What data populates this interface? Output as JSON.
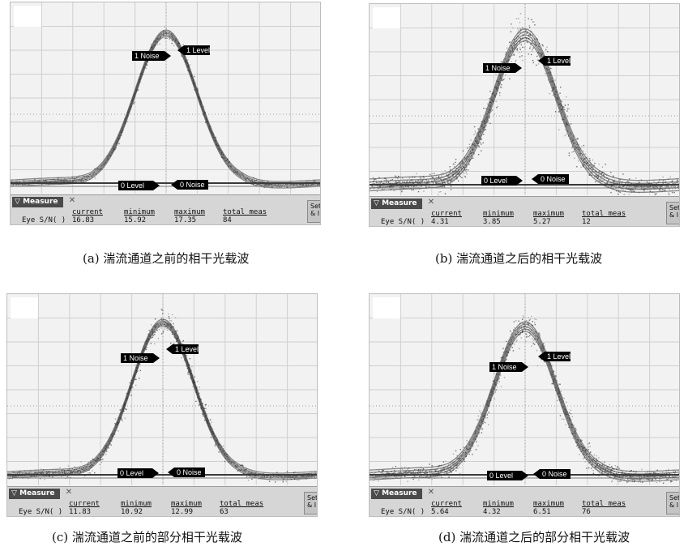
{
  "panels": [
    {
      "caption": "(a)  湍流通道之前的相干光载波",
      "markers": {
        "level1": "1 Level",
        "noise1": "1 Noise",
        "level0": "0 Level",
        "noise0": "0 Noise"
      },
      "measure": {
        "title": "Measure",
        "name": "Eye S/N( )",
        "headers": [
          "current",
          "minimum",
          "maximum",
          "total meas"
        ],
        "values": [
          "16.83",
          "15.92",
          "17.35",
          "84"
        ]
      },
      "setup_label": "Set & I"
    },
    {
      "caption": "(b)  湍流通道之后的相干光载波",
      "markers": {
        "level1": "1 Level",
        "noise1": "1 Noise",
        "level0": "0 Level",
        "noise0": "0 Noise"
      },
      "measure": {
        "title": "Measure",
        "name": "Eye S/N( )",
        "headers": [
          "current",
          "minimum",
          "maximum",
          "total meas"
        ],
        "values": [
          "4.31",
          "3.85",
          "5.27",
          "12"
        ]
      },
      "setup_label": "Set & I"
    },
    {
      "caption": "(c)  湍流通道之前的部分相干光载波",
      "markers": {
        "level1": "1 Level",
        "noise1": "1 Noise",
        "level0": "0 Level",
        "noise0": "0 Noise"
      },
      "measure": {
        "title": "Measure",
        "name": "Eye S/N( )",
        "headers": [
          "current",
          "minimum",
          "maximum",
          "total meas"
        ],
        "values": [
          "11.83",
          "10.92",
          "12.99",
          "63"
        ]
      },
      "setup_label": "Set & I"
    },
    {
      "caption": "(d)  湍流通道之后的部分相干光载波",
      "markers": {
        "level1": "1 Level",
        "noise1": "1 Noise",
        "level0": "0 Level",
        "noise0": "0 Noise"
      },
      "measure": {
        "title": "Measure",
        "name": "Eye S/N( )",
        "headers": [
          "current",
          "minimum",
          "maximum",
          "total meas"
        ],
        "values": [
          "5.64",
          "4.32",
          "6.51",
          "76"
        ]
      },
      "setup_label": "Set & I"
    }
  ]
}
